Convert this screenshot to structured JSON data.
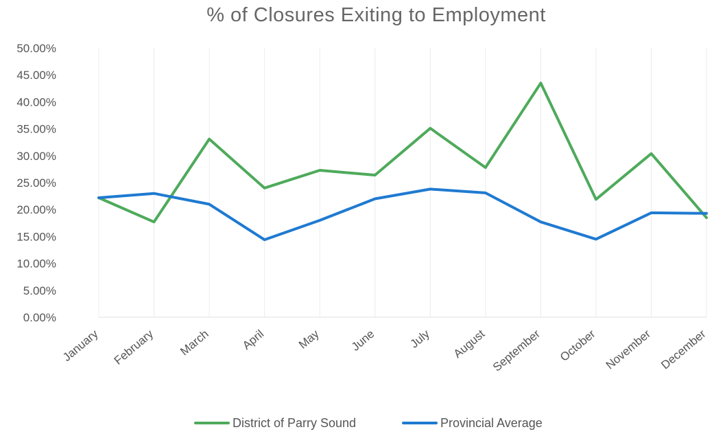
{
  "chart_data": {
    "type": "line",
    "title": "% of Closures  Exiting to Employment",
    "xlabel": "",
    "ylabel": "",
    "categories": [
      "January",
      "February",
      "March",
      "April",
      "May",
      "June",
      "July",
      "August",
      "September",
      "October",
      "November",
      "December"
    ],
    "ylim": [
      0,
      0.5
    ],
    "y_ticks": [
      "0.00%",
      "5.00%",
      "10.00%",
      "15.00%",
      "20.00%",
      "25.00%",
      "30.00%",
      "35.00%",
      "40.00%",
      "45.00%",
      "50.00%"
    ],
    "grid": "vertical category gridlines (light)",
    "legend_position": "bottom",
    "series": [
      {
        "name": "District of Parry Sound",
        "color": "#4eaa5b",
        "values": [
          0.222,
          0.177,
          0.331,
          0.24,
          0.273,
          0.264,
          0.351,
          0.278,
          0.435,
          0.219,
          0.304,
          0.185
        ]
      },
      {
        "name": "Provincial Average",
        "color": "#1f7ad1",
        "values": [
          0.222,
          0.23,
          0.21,
          0.144,
          0.18,
          0.22,
          0.238,
          0.231,
          0.177,
          0.145,
          0.194,
          0.193
        ]
      }
    ]
  }
}
